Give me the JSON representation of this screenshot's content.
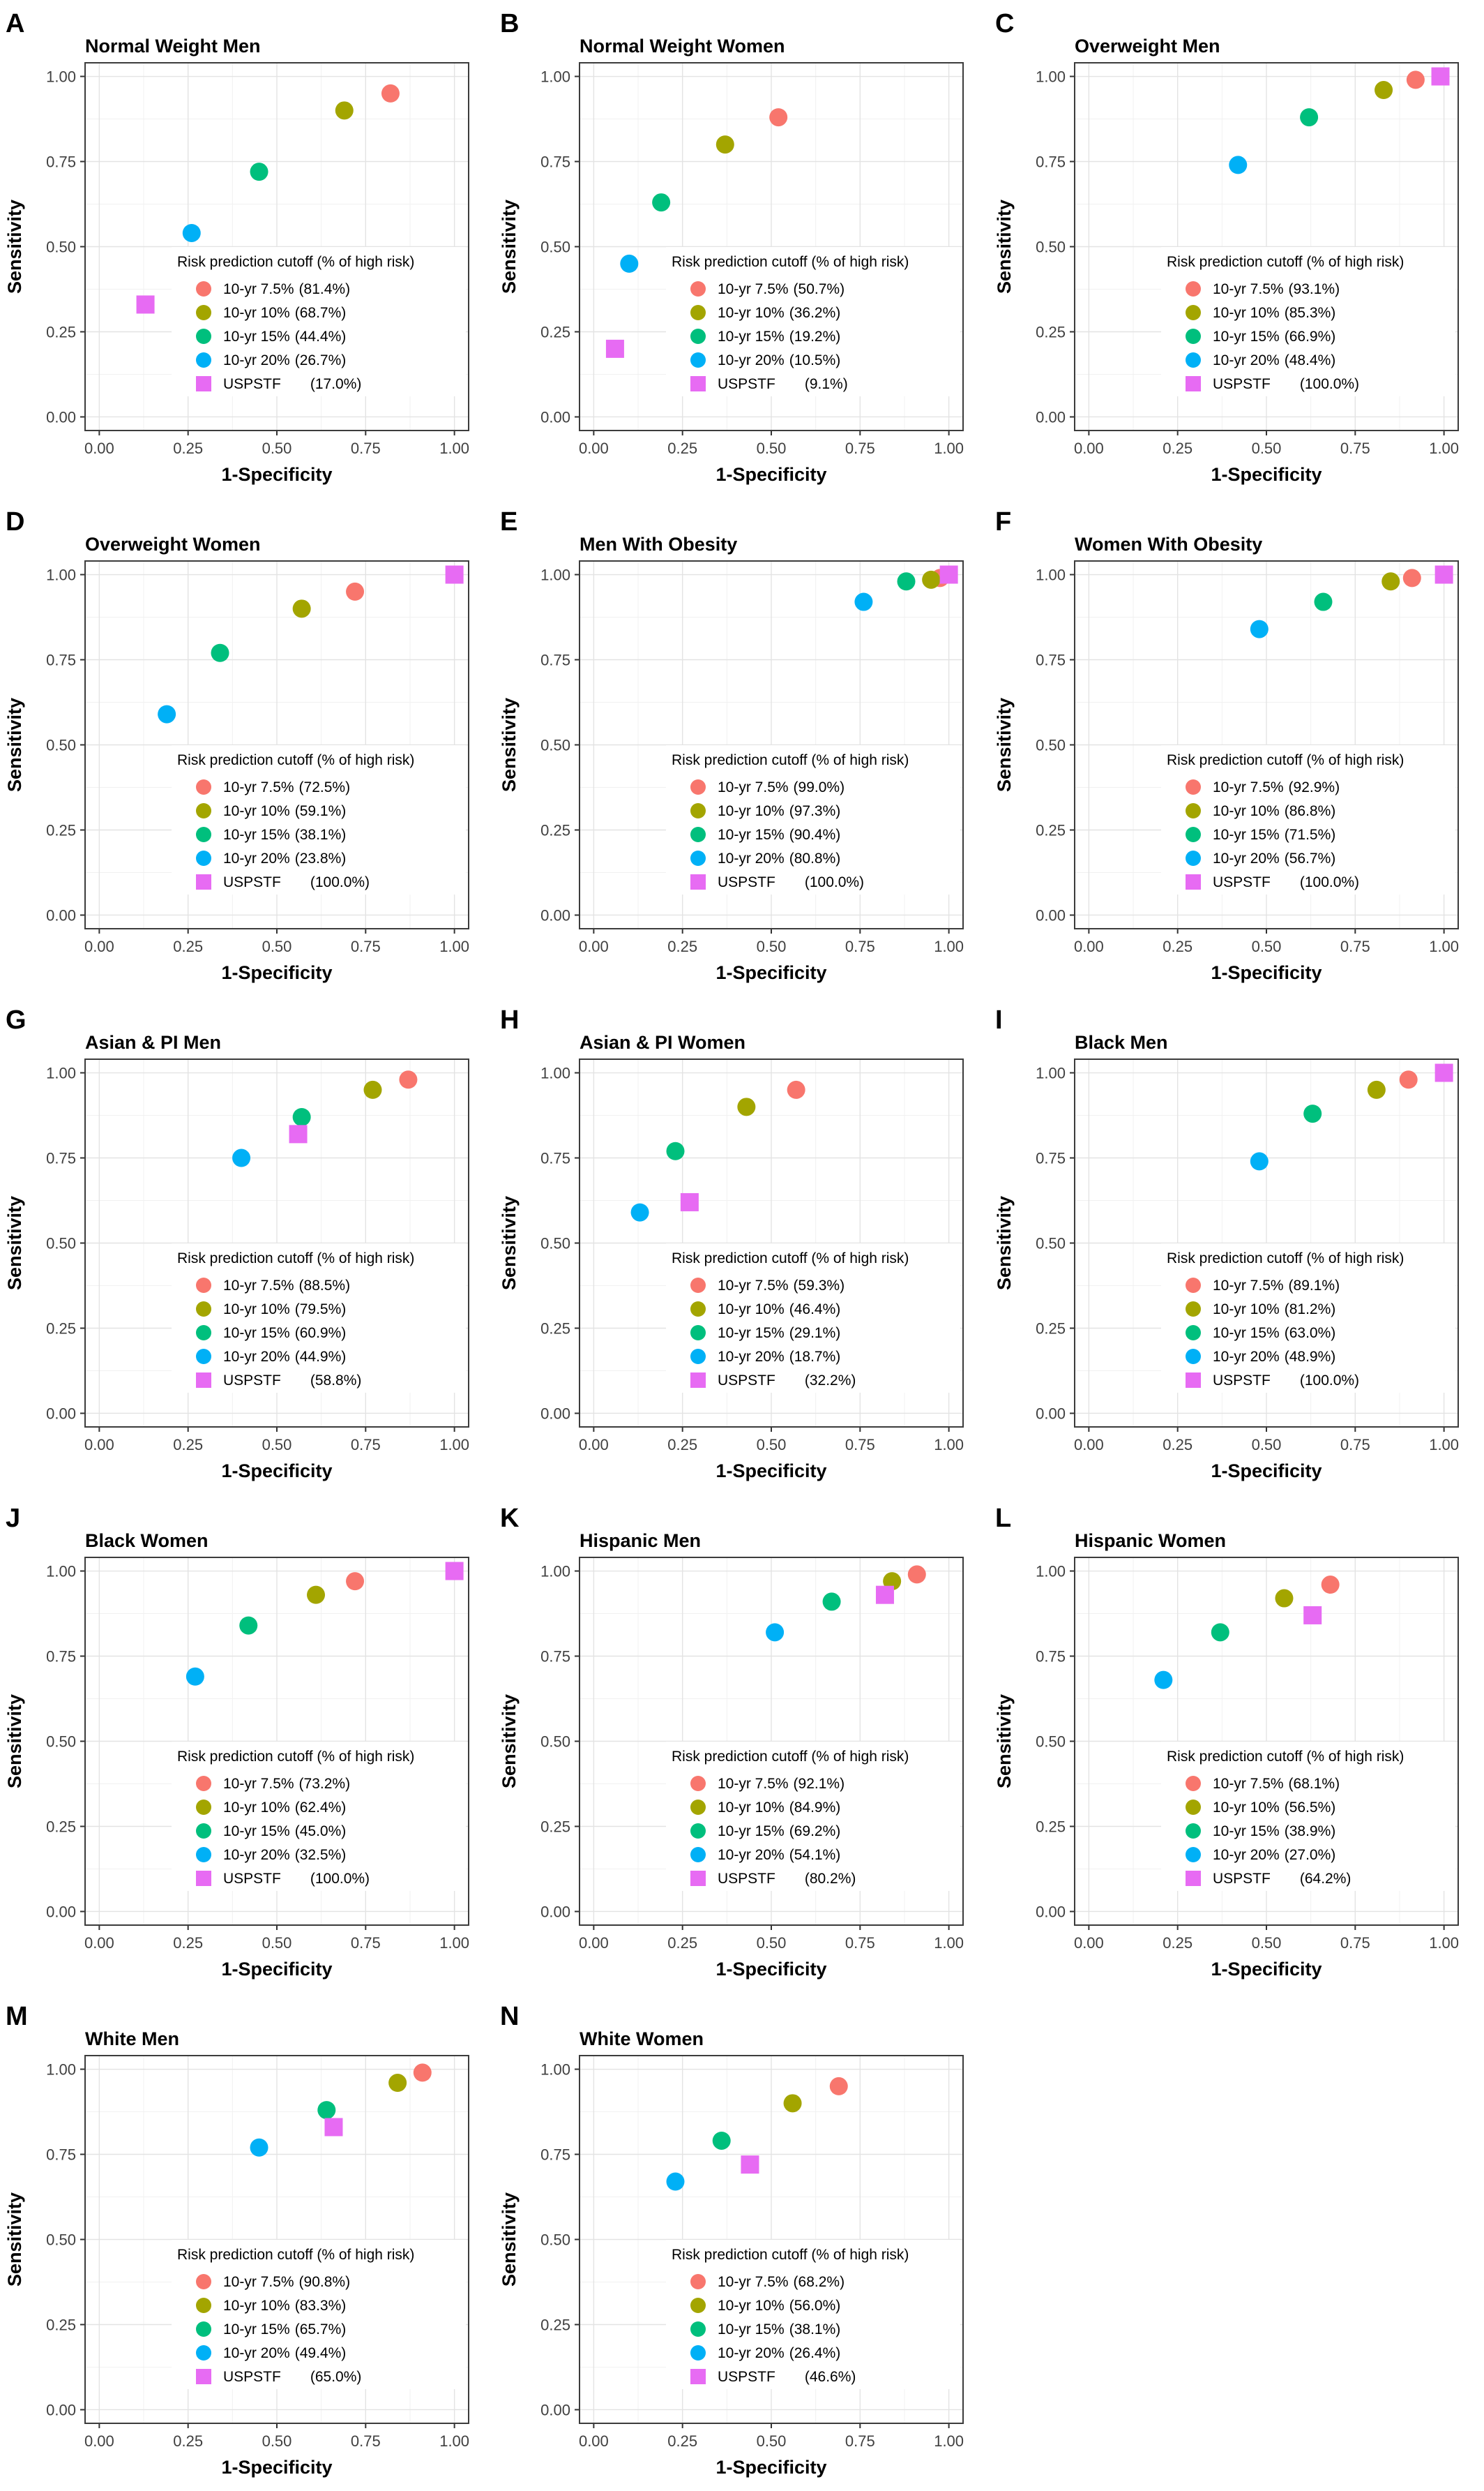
{
  "figure": {
    "x_label": "1-Specificity",
    "y_label": "Sensitivity",
    "tick_labels": [
      "0.00",
      "0.25",
      "0.50",
      "0.75",
      "1.00"
    ],
    "tick_values": [
      0,
      0.25,
      0.5,
      0.75,
      1
    ],
    "minor_tick_values": [
      0.125,
      0.375,
      0.625,
      0.875
    ],
    "xlim": [
      0,
      1
    ],
    "ylim": [
      0,
      1
    ],
    "legend_title": "Risk prediction cutoff (% of high risk)",
    "colors": {
      "yr7_5": "#F8766D",
      "yr10": "#A3A500",
      "yr15": "#00BF7D",
      "yr20": "#00B0F6",
      "uspstf": "#E76BF3",
      "grid_major": "#E3E3E3",
      "grid_minor": "#F1F1F1",
      "panel_border": "#3C3C3C",
      "tick_text": "#404040"
    }
  },
  "chart_data": [
    {
      "type": "scatter",
      "letter": "A",
      "title": "Normal Weight Men",
      "series": [
        {
          "name": "10-yr 7.5%",
          "pct": "(81.4%)",
          "shape": "circle",
          "color": "#F8766D",
          "x": 0.82,
          "y": 0.95
        },
        {
          "name": "10-yr 10%",
          "pct": "(68.7%)",
          "shape": "circle",
          "color": "#A3A500",
          "x": 0.69,
          "y": 0.9
        },
        {
          "name": "10-yr 15%",
          "pct": "(44.4%)",
          "shape": "circle",
          "color": "#00BF7D",
          "x": 0.45,
          "y": 0.72
        },
        {
          "name": "10-yr 20%",
          "pct": "(26.7%)",
          "shape": "circle",
          "color": "#00B0F6",
          "x": 0.26,
          "y": 0.54
        },
        {
          "name": "USPSTF",
          "pct": "(17.0%)",
          "shape": "square",
          "color": "#E76BF3",
          "x": 0.13,
          "y": 0.33
        }
      ]
    },
    {
      "type": "scatter",
      "letter": "B",
      "title": "Normal Weight Women",
      "series": [
        {
          "name": "10-yr 7.5%",
          "pct": "(50.7%)",
          "shape": "circle",
          "color": "#F8766D",
          "x": 0.52,
          "y": 0.88
        },
        {
          "name": "10-yr 10%",
          "pct": "(36.2%)",
          "shape": "circle",
          "color": "#A3A500",
          "x": 0.37,
          "y": 0.8
        },
        {
          "name": "10-yr 15%",
          "pct": "(19.2%)",
          "shape": "circle",
          "color": "#00BF7D",
          "x": 0.19,
          "y": 0.63
        },
        {
          "name": "10-yr 20%",
          "pct": "(10.5%)",
          "shape": "circle",
          "color": "#00B0F6",
          "x": 0.1,
          "y": 0.45
        },
        {
          "name": "USPSTF",
          "pct": "(9.1%)",
          "shape": "square",
          "color": "#E76BF3",
          "x": 0.06,
          "y": 0.2
        }
      ]
    },
    {
      "type": "scatter",
      "letter": "C",
      "title": "Overweight Men",
      "series": [
        {
          "name": "10-yr 7.5%",
          "pct": "(93.1%)",
          "shape": "circle",
          "color": "#F8766D",
          "x": 0.92,
          "y": 0.99
        },
        {
          "name": "10-yr 10%",
          "pct": "(85.3%)",
          "shape": "circle",
          "color": "#A3A500",
          "x": 0.83,
          "y": 0.96
        },
        {
          "name": "10-yr 15%",
          "pct": "(66.9%)",
          "shape": "circle",
          "color": "#00BF7D",
          "x": 0.62,
          "y": 0.88
        },
        {
          "name": "10-yr 20%",
          "pct": "(48.4%)",
          "shape": "circle",
          "color": "#00B0F6",
          "x": 0.42,
          "y": 0.74
        },
        {
          "name": "USPSTF",
          "pct": "(100.0%)",
          "shape": "square",
          "color": "#E76BF3",
          "x": 0.99,
          "y": 1.0
        }
      ]
    },
    {
      "type": "scatter",
      "letter": "D",
      "title": "Overweight Women",
      "series": [
        {
          "name": "10-yr 7.5%",
          "pct": "(72.5%)",
          "shape": "circle",
          "color": "#F8766D",
          "x": 0.72,
          "y": 0.95
        },
        {
          "name": "10-yr 10%",
          "pct": "(59.1%)",
          "shape": "circle",
          "color": "#A3A500",
          "x": 0.57,
          "y": 0.9
        },
        {
          "name": "10-yr 15%",
          "pct": "(38.1%)",
          "shape": "circle",
          "color": "#00BF7D",
          "x": 0.34,
          "y": 0.77
        },
        {
          "name": "10-yr 20%",
          "pct": "(23.8%)",
          "shape": "circle",
          "color": "#00B0F6",
          "x": 0.19,
          "y": 0.59
        },
        {
          "name": "USPSTF",
          "pct": "(100.0%)",
          "shape": "square",
          "color": "#E76BF3",
          "x": 1.0,
          "y": 1.0
        }
      ]
    },
    {
      "type": "scatter",
      "letter": "E",
      "title": "Men With Obesity",
      "series": [
        {
          "name": "10-yr 7.5%",
          "pct": "(99.0%)",
          "shape": "circle",
          "color": "#F8766D",
          "x": 0.975,
          "y": 0.99
        },
        {
          "name": "10-yr 10%",
          "pct": "(97.3%)",
          "shape": "circle",
          "color": "#A3A500",
          "x": 0.95,
          "y": 0.985
        },
        {
          "name": "10-yr 15%",
          "pct": "(90.4%)",
          "shape": "circle",
          "color": "#00BF7D",
          "x": 0.88,
          "y": 0.98
        },
        {
          "name": "10-yr 20%",
          "pct": "(80.8%)",
          "shape": "circle",
          "color": "#00B0F6",
          "x": 0.76,
          "y": 0.92
        },
        {
          "name": "USPSTF",
          "pct": "(100.0%)",
          "shape": "square",
          "color": "#E76BF3",
          "x": 1.0,
          "y": 1.0
        }
      ]
    },
    {
      "type": "scatter",
      "letter": "F",
      "title": "Women With Obesity",
      "series": [
        {
          "name": "10-yr 7.5%",
          "pct": "(92.9%)",
          "shape": "circle",
          "color": "#F8766D",
          "x": 0.91,
          "y": 0.99
        },
        {
          "name": "10-yr 10%",
          "pct": "(86.8%)",
          "shape": "circle",
          "color": "#A3A500",
          "x": 0.85,
          "y": 0.98
        },
        {
          "name": "10-yr 15%",
          "pct": "(71.5%)",
          "shape": "circle",
          "color": "#00BF7D",
          "x": 0.66,
          "y": 0.92
        },
        {
          "name": "10-yr 20%",
          "pct": "(56.7%)",
          "shape": "circle",
          "color": "#00B0F6",
          "x": 0.48,
          "y": 0.84
        },
        {
          "name": "USPSTF",
          "pct": "(100.0%)",
          "shape": "square",
          "color": "#E76BF3",
          "x": 1.0,
          "y": 1.0
        }
      ]
    },
    {
      "type": "scatter",
      "letter": "G",
      "title": "Asian & PI Men",
      "series": [
        {
          "name": "10-yr 7.5%",
          "pct": "(88.5%)",
          "shape": "circle",
          "color": "#F8766D",
          "x": 0.87,
          "y": 0.98
        },
        {
          "name": "10-yr 10%",
          "pct": "(79.5%)",
          "shape": "circle",
          "color": "#A3A500",
          "x": 0.77,
          "y": 0.95
        },
        {
          "name": "10-yr 15%",
          "pct": "(60.9%)",
          "shape": "circle",
          "color": "#00BF7D",
          "x": 0.57,
          "y": 0.87
        },
        {
          "name": "10-yr 20%",
          "pct": "(44.9%)",
          "shape": "circle",
          "color": "#00B0F6",
          "x": 0.4,
          "y": 0.75
        },
        {
          "name": "USPSTF",
          "pct": "(58.8%)",
          "shape": "square",
          "color": "#E76BF3",
          "x": 0.56,
          "y": 0.82
        }
      ]
    },
    {
      "type": "scatter",
      "letter": "H",
      "title": "Asian & PI Women",
      "series": [
        {
          "name": "10-yr 7.5%",
          "pct": "(59.3%)",
          "shape": "circle",
          "color": "#F8766D",
          "x": 0.57,
          "y": 0.95
        },
        {
          "name": "10-yr 10%",
          "pct": "(46.4%)",
          "shape": "circle",
          "color": "#A3A500",
          "x": 0.43,
          "y": 0.9
        },
        {
          "name": "10-yr 15%",
          "pct": "(29.1%)",
          "shape": "circle",
          "color": "#00BF7D",
          "x": 0.23,
          "y": 0.77
        },
        {
          "name": "10-yr 20%",
          "pct": "(18.7%)",
          "shape": "circle",
          "color": "#00B0F6",
          "x": 0.13,
          "y": 0.59
        },
        {
          "name": "USPSTF",
          "pct": "(32.2%)",
          "shape": "square",
          "color": "#E76BF3",
          "x": 0.27,
          "y": 0.62
        }
      ]
    },
    {
      "type": "scatter",
      "letter": "I",
      "title": "Black Men",
      "series": [
        {
          "name": "10-yr 7.5%",
          "pct": "(89.1%)",
          "shape": "circle",
          "color": "#F8766D",
          "x": 0.9,
          "y": 0.98
        },
        {
          "name": "10-yr 10%",
          "pct": "(81.2%)",
          "shape": "circle",
          "color": "#A3A500",
          "x": 0.81,
          "y": 0.95
        },
        {
          "name": "10-yr 15%",
          "pct": "(63.0%)",
          "shape": "circle",
          "color": "#00BF7D",
          "x": 0.63,
          "y": 0.88
        },
        {
          "name": "10-yr 20%",
          "pct": "(48.9%)",
          "shape": "circle",
          "color": "#00B0F6",
          "x": 0.48,
          "y": 0.74
        },
        {
          "name": "USPSTF",
          "pct": "(100.0%)",
          "shape": "square",
          "color": "#E76BF3",
          "x": 1.0,
          "y": 1.0
        }
      ]
    },
    {
      "type": "scatter",
      "letter": "J",
      "title": "Black Women",
      "series": [
        {
          "name": "10-yr 7.5%",
          "pct": "(73.2%)",
          "shape": "circle",
          "color": "#F8766D",
          "x": 0.72,
          "y": 0.97
        },
        {
          "name": "10-yr 10%",
          "pct": "(62.4%)",
          "shape": "circle",
          "color": "#A3A500",
          "x": 0.61,
          "y": 0.93
        },
        {
          "name": "10-yr 15%",
          "pct": "(45.0%)",
          "shape": "circle",
          "color": "#00BF7D",
          "x": 0.42,
          "y": 0.84
        },
        {
          "name": "10-yr 20%",
          "pct": "(32.5%)",
          "shape": "circle",
          "color": "#00B0F6",
          "x": 0.27,
          "y": 0.69
        },
        {
          "name": "USPSTF",
          "pct": "(100.0%)",
          "shape": "square",
          "color": "#E76BF3",
          "x": 1.0,
          "y": 1.0
        }
      ]
    },
    {
      "type": "scatter",
      "letter": "K",
      "title": "Hispanic Men",
      "series": [
        {
          "name": "10-yr 7.5%",
          "pct": "(92.1%)",
          "shape": "circle",
          "color": "#F8766D",
          "x": 0.91,
          "y": 0.99
        },
        {
          "name": "10-yr 10%",
          "pct": "(84.9%)",
          "shape": "circle",
          "color": "#A3A500",
          "x": 0.84,
          "y": 0.97
        },
        {
          "name": "10-yr 15%",
          "pct": "(69.2%)",
          "shape": "circle",
          "color": "#00BF7D",
          "x": 0.67,
          "y": 0.91
        },
        {
          "name": "10-yr 20%",
          "pct": "(54.1%)",
          "shape": "circle",
          "color": "#00B0F6",
          "x": 0.51,
          "y": 0.82
        },
        {
          "name": "USPSTF",
          "pct": "(80.2%)",
          "shape": "square",
          "color": "#E76BF3",
          "x": 0.82,
          "y": 0.93
        }
      ]
    },
    {
      "type": "scatter",
      "letter": "L",
      "title": "Hispanic Women",
      "series": [
        {
          "name": "10-yr 7.5%",
          "pct": "(68.1%)",
          "shape": "circle",
          "color": "#F8766D",
          "x": 0.68,
          "y": 0.96
        },
        {
          "name": "10-yr 10%",
          "pct": "(56.5%)",
          "shape": "circle",
          "color": "#A3A500",
          "x": 0.55,
          "y": 0.92
        },
        {
          "name": "10-yr 15%",
          "pct": "(38.9%)",
          "shape": "circle",
          "color": "#00BF7D",
          "x": 0.37,
          "y": 0.82
        },
        {
          "name": "10-yr 20%",
          "pct": "(27.0%)",
          "shape": "circle",
          "color": "#00B0F6",
          "x": 0.21,
          "y": 0.68
        },
        {
          "name": "USPSTF",
          "pct": "(64.2%)",
          "shape": "square",
          "color": "#E76BF3",
          "x": 0.63,
          "y": 0.87
        }
      ]
    },
    {
      "type": "scatter",
      "letter": "M",
      "title": "White Men",
      "series": [
        {
          "name": "10-yr 7.5%",
          "pct": "(90.8%)",
          "shape": "circle",
          "color": "#F8766D",
          "x": 0.91,
          "y": 0.99
        },
        {
          "name": "10-yr 10%",
          "pct": "(83.3%)",
          "shape": "circle",
          "color": "#A3A500",
          "x": 0.84,
          "y": 0.96
        },
        {
          "name": "10-yr 15%",
          "pct": "(65.7%)",
          "shape": "circle",
          "color": "#00BF7D",
          "x": 0.64,
          "y": 0.88
        },
        {
          "name": "10-yr 20%",
          "pct": "(49.4%)",
          "shape": "circle",
          "color": "#00B0F6",
          "x": 0.45,
          "y": 0.77
        },
        {
          "name": "USPSTF",
          "pct": "(65.0%)",
          "shape": "square",
          "color": "#E76BF3",
          "x": 0.66,
          "y": 0.83
        }
      ]
    },
    {
      "type": "scatter",
      "letter": "N",
      "title": "White Women",
      "series": [
        {
          "name": "10-yr 7.5%",
          "pct": "(68.2%)",
          "shape": "circle",
          "color": "#F8766D",
          "x": 0.69,
          "y": 0.95
        },
        {
          "name": "10-yr 10%",
          "pct": "(56.0%)",
          "shape": "circle",
          "color": "#A3A500",
          "x": 0.56,
          "y": 0.9
        },
        {
          "name": "10-yr 15%",
          "pct": "(38.1%)",
          "shape": "circle",
          "color": "#00BF7D",
          "x": 0.36,
          "y": 0.79
        },
        {
          "name": "10-yr 20%",
          "pct": "(26.4%)",
          "shape": "circle",
          "color": "#00B0F6",
          "x": 0.23,
          "y": 0.67
        },
        {
          "name": "USPSTF",
          "pct": "(46.6%)",
          "shape": "square",
          "color": "#E76BF3",
          "x": 0.44,
          "y": 0.72
        }
      ]
    }
  ]
}
